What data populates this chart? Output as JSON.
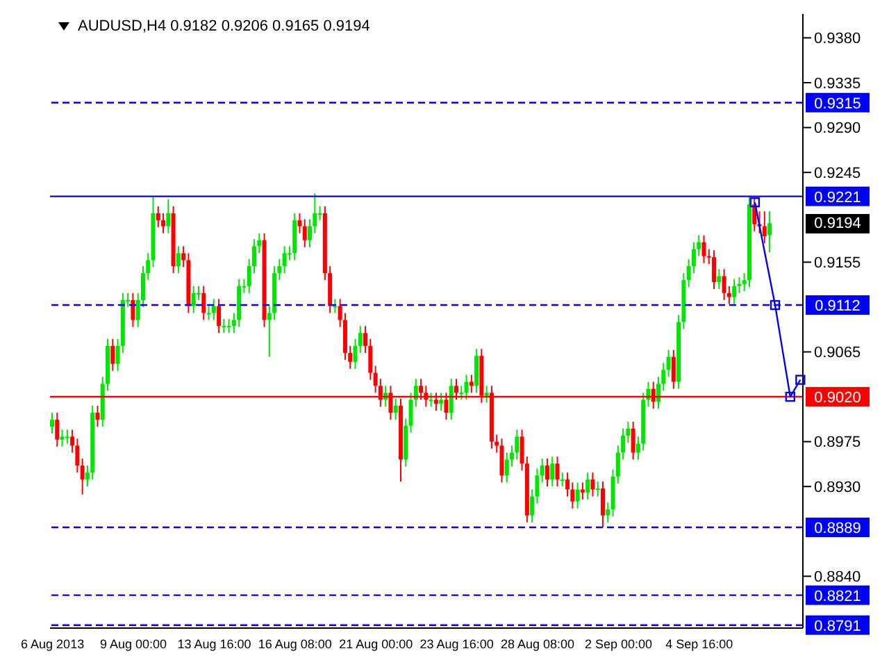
{
  "chart_data": {
    "type": "candlestick",
    "title": "AUDUSD,H4  0.9182 0.9206 0.9165 0.9194",
    "categories": [
      "6 Aug 2013",
      null,
      null,
      null,
      null,
      null,
      null,
      null,
      null,
      null,
      null,
      null,
      null,
      null,
      null,
      null,
      "9 Aug 00:00",
      null,
      null,
      null,
      null,
      null,
      null,
      null,
      null,
      null,
      null,
      null,
      null,
      null,
      null,
      null,
      "13 Aug 16:00",
      null,
      null,
      null,
      null,
      null,
      null,
      null,
      null,
      null,
      null,
      null,
      null,
      null,
      null,
      null,
      "16 Aug 08:00",
      null,
      null,
      null,
      null,
      null,
      null,
      null,
      null,
      null,
      null,
      null,
      null,
      null,
      null,
      null,
      "21 Aug 00:00",
      null,
      null,
      null,
      null,
      null,
      null,
      null,
      null,
      null,
      null,
      null,
      null,
      null,
      null,
      null,
      "23 Aug 16:00",
      null,
      null,
      null,
      null,
      null,
      null,
      null,
      null,
      null,
      null,
      null,
      null,
      null,
      null,
      null,
      "28 Aug 08:00",
      null,
      null,
      null,
      null,
      null,
      null,
      null,
      null,
      null,
      null,
      null,
      null,
      null,
      null,
      null,
      "2 Sep 00:00",
      null,
      null,
      null,
      null,
      null,
      null,
      null,
      null,
      null,
      null,
      null,
      null,
      null,
      null,
      null,
      "4 Sep 16:00",
      null,
      null,
      null,
      null,
      null,
      null,
      null,
      null,
      null,
      null,
      null,
      null,
      null,
      null,
      null,
      null,
      null,
      null,
      null,
      null
    ],
    "ylim": [
      0.8788,
      0.9404
    ],
    "yticks": [
      {
        "value": 0.938,
        "label": "0.9380"
      },
      {
        "value": 0.9335,
        "label": "0.9335"
      },
      {
        "value": 0.929,
        "label": "0.9290"
      },
      {
        "value": 0.9245,
        "label": "0.9245"
      },
      {
        "value": 0.9155,
        "label": "0.9155"
      },
      {
        "value": 0.9065,
        "label": "0.9065"
      },
      {
        "value": 0.8975,
        "label": "0.8975"
      },
      {
        "value": 0.893,
        "label": "0.8930"
      },
      {
        "value": 0.884,
        "label": "0.8840"
      }
    ],
    "marker": "square",
    "annotations": [
      "0.9194"
    ],
    "ref_lines": [
      {
        "axis": "y",
        "value": 0.9315,
        "label": "0.9315",
        "color": "#0000ff",
        "line_style": "dashed"
      },
      {
        "axis": "y",
        "value": 0.9221,
        "label": "0.9221",
        "color": "#0000ff",
        "line_style": "solid"
      },
      {
        "axis": "y",
        "value": 0.9112,
        "label": "0.9112",
        "color": "#0000ff",
        "line_style": "dashed"
      },
      {
        "axis": "y",
        "value": 0.902,
        "label": "0.9020",
        "color": "#ff0000",
        "line_style": "solid"
      },
      {
        "axis": "y",
        "value": 0.8889,
        "label": "0.8889",
        "color": "#0000ff",
        "line_style": "dashed"
      },
      {
        "axis": "y",
        "value": 0.8821,
        "label": "0.8821",
        "color": "#0000ff",
        "line_style": "dashed"
      },
      {
        "axis": "y",
        "value": 0.8791,
        "label": "0.8791",
        "color": "#0000ff",
        "line_style": "dashed"
      }
    ],
    "series": [
      {
        "colors": [
          "#00e600",
          "#ff0000",
          "#00e600",
          "#00e600",
          "#ff0000",
          "#ff0000",
          "#ff0000",
          "#00e600",
          "#00e600",
          "#ff0000",
          "#00e600",
          "#00e600",
          "#ff0000",
          "#00e600",
          "#00e600",
          "#00e600",
          "#ff0000",
          "#00e600",
          "#00e600",
          "#00e600",
          "#00e600",
          "#ff0000",
          "#ff0000",
          "#00e600",
          "#ff0000",
          "#00e600",
          "#ff0000",
          "#ff0000",
          "#00e600",
          "#00e600",
          "#ff0000",
          "#00e600",
          "#00e600",
          "#ff0000",
          "#00e600",
          "#00e600",
          "#00e600",
          "#00e600",
          "#00e600",
          "#00e600",
          "#00e600",
          "#00e600",
          "#ff0000",
          "#00e600",
          "#00e600",
          "#00e600",
          "#00e600",
          "#00e600",
          "#00e600",
          "#ff0000",
          "#ff0000",
          "#00e600",
          "#00e600",
          "#00e600",
          "#ff0000",
          "#ff0000",
          "#00e600",
          "#ff0000",
          "#ff0000",
          "#ff0000",
          "#00e600",
          "#00e600",
          "#ff0000",
          "#ff0000",
          "#ff0000",
          "#ff0000",
          "#00e600",
          "#ff0000",
          "#00e600",
          "#ff0000",
          "#00e600",
          "#00e600",
          "#00e600",
          "#ff0000",
          "#ff0000",
          "#00e600",
          "#ff0000",
          "#00e600",
          "#ff0000",
          "#00e600",
          "#ff0000",
          "#00e600",
          "#00e600",
          "#ff0000",
          "#00e600",
          "#ff0000",
          "#00e600",
          "#ff0000",
          "#ff0000",
          "#ff0000",
          "#00e600",
          "#00e600",
          "#00e600",
          "#ff0000",
          "#ff0000",
          "#00e600",
          "#00e600",
          "#00e600",
          "#ff0000",
          "#00e600",
          "#ff0000",
          "#00e600",
          "#ff0000",
          "#ff0000",
          "#00e600",
          "#ff0000",
          "#00e600",
          "#ff0000",
          "#00e600",
          "#ff0000",
          "#00e600",
          "#00e600",
          "#00e600",
          "#00e600",
          "#00e600",
          "#ff0000",
          "#00e600",
          "#00e600",
          "#00e600",
          "#ff0000",
          "#00e600",
          "#00e600",
          "#00e600",
          "#ff0000",
          "#00e600",
          "#00e600",
          "#00e600",
          "#00e600",
          "#00e600",
          "#ff0000",
          "#ff0000",
          "#ff0000",
          "#00e600",
          "#ff0000",
          "#ff0000",
          "#00e600",
          "#00e600",
          "#00e600",
          "#00e600",
          "#ff0000",
          "#ff0000",
          "#ff0000",
          "#00e600",
          null,
          null,
          null,
          null,
          null,
          null
        ],
        "ohlc": [
          [
            0.899,
            0.9004,
            0.8983,
            0.8997
          ],
          [
            0.8997,
            0.9004,
            0.897,
            0.8977
          ],
          [
            0.8977,
            0.8987,
            0.897,
            0.898
          ],
          [
            0.898,
            0.8987,
            0.8973,
            0.898
          ],
          [
            0.898,
            0.8987,
            0.8964,
            0.8971
          ],
          [
            0.8971,
            0.8978,
            0.8944,
            0.8951
          ],
          [
            0.8951,
            0.8958,
            0.8922,
            0.8937
          ],
          [
            0.8937,
            0.8951,
            0.893,
            0.8944
          ],
          [
            0.8944,
            0.9011,
            0.8937,
            0.9004
          ],
          [
            0.9004,
            0.9011,
            0.899,
            0.8997
          ],
          [
            0.8997,
            0.904,
            0.899,
            0.9033
          ],
          [
            0.9033,
            0.9078,
            0.9026,
            0.9071
          ],
          [
            0.9071,
            0.9078,
            0.9046,
            0.9053
          ],
          [
            0.9053,
            0.9078,
            0.9046,
            0.9071
          ],
          [
            0.9071,
            0.9124,
            0.9064,
            0.9117
          ],
          [
            0.9117,
            0.9124,
            0.911,
            0.9117
          ],
          [
            0.9117,
            0.9124,
            0.909,
            0.9097
          ],
          [
            0.9097,
            0.9124,
            0.909,
            0.9117
          ],
          [
            0.9117,
            0.9151,
            0.911,
            0.9144
          ],
          [
            0.9144,
            0.9164,
            0.9137,
            0.9157
          ],
          [
            0.9157,
            0.9221,
            0.915,
            0.9204
          ],
          [
            0.9204,
            0.9211,
            0.919,
            0.9197
          ],
          [
            0.9197,
            0.9204,
            0.9184,
            0.9191
          ],
          [
            0.9191,
            0.9218,
            0.9184,
            0.9204
          ],
          [
            0.9204,
            0.9211,
            0.9144,
            0.9151
          ],
          [
            0.9151,
            0.9171,
            0.9144,
            0.9164
          ],
          [
            0.9164,
            0.9171,
            0.915,
            0.9157
          ],
          [
            0.9157,
            0.9164,
            0.9104,
            0.9111
          ],
          [
            0.9111,
            0.9131,
            0.9104,
            0.9124
          ],
          [
            0.9124,
            0.9131,
            0.9117,
            0.9124
          ],
          [
            0.9124,
            0.9131,
            0.9097,
            0.9104
          ],
          [
            0.9104,
            0.9111,
            0.9097,
            0.9104
          ],
          [
            0.9104,
            0.9118,
            0.9097,
            0.9111
          ],
          [
            0.9111,
            0.9118,
            0.9084,
            0.9091
          ],
          [
            0.9091,
            0.9098,
            0.9084,
            0.9091
          ],
          [
            0.9091,
            0.9098,
            0.9084,
            0.9091
          ],
          [
            0.9091,
            0.9104,
            0.9084,
            0.9097
          ],
          [
            0.9097,
            0.9138,
            0.909,
            0.9131
          ],
          [
            0.9131,
            0.9138,
            0.9124,
            0.9131
          ],
          [
            0.9131,
            0.9158,
            0.9124,
            0.9151
          ],
          [
            0.9151,
            0.9178,
            0.9144,
            0.9171
          ],
          [
            0.9171,
            0.9184,
            0.9164,
            0.9177
          ],
          [
            0.9177,
            0.9184,
            0.909,
            0.9097
          ],
          [
            0.9097,
            0.9111,
            0.906,
            0.9104
          ],
          [
            0.9104,
            0.9151,
            0.9097,
            0.9144
          ],
          [
            0.9144,
            0.9158,
            0.9137,
            0.9151
          ],
          [
            0.9151,
            0.9171,
            0.9144,
            0.9164
          ],
          [
            0.9164,
            0.9171,
            0.9157,
            0.9164
          ],
          [
            0.9164,
            0.9204,
            0.9157,
            0.9197
          ],
          [
            0.9197,
            0.9204,
            0.9184,
            0.9191
          ],
          [
            0.9191,
            0.9198,
            0.917,
            0.9177
          ],
          [
            0.9177,
            0.9198,
            0.917,
            0.9191
          ],
          [
            0.9191,
            0.9224,
            0.9184,
            0.9204
          ],
          [
            0.9204,
            0.9211,
            0.9197,
            0.9204
          ],
          [
            0.9204,
            0.9211,
            0.9137,
            0.9144
          ],
          [
            0.9144,
            0.9151,
            0.9104,
            0.9111
          ],
          [
            0.9111,
            0.9118,
            0.9104,
            0.9111
          ],
          [
            0.9111,
            0.9118,
            0.909,
            0.9097
          ],
          [
            0.9097,
            0.9104,
            0.9057,
            0.9064
          ],
          [
            0.9064,
            0.9071,
            0.9048,
            0.9055
          ],
          [
            0.9055,
            0.9078,
            0.9048,
            0.9071
          ],
          [
            0.9071,
            0.9091,
            0.9064,
            0.9084
          ],
          [
            0.9084,
            0.9091,
            0.9064,
            0.9071
          ],
          [
            0.9071,
            0.9078,
            0.9037,
            0.9044
          ],
          [
            0.9044,
            0.9051,
            0.9024,
            0.9031
          ],
          [
            0.9031,
            0.9038,
            0.901,
            0.9017
          ],
          [
            0.9017,
            0.9031,
            0.901,
            0.9024
          ],
          [
            0.9024,
            0.9031,
            0.8997,
            0.9004
          ],
          [
            0.9004,
            0.9018,
            0.8997,
            0.9011
          ],
          [
            0.9011,
            0.9018,
            0.8935,
            0.8957
          ],
          [
            0.8957,
            0.8998,
            0.895,
            0.8991
          ],
          [
            0.8991,
            0.9024,
            0.8984,
            0.9017
          ],
          [
            0.9017,
            0.9038,
            0.901,
            0.9031
          ],
          [
            0.9031,
            0.9038,
            0.9017,
            0.9024
          ],
          [
            0.9024,
            0.9031,
            0.901,
            0.9017
          ],
          [
            0.9017,
            0.9024,
            0.901,
            0.9017
          ],
          [
            0.9017,
            0.9024,
            0.9006,
            0.9013
          ],
          [
            0.9013,
            0.9024,
            0.9006,
            0.9017
          ],
          [
            0.9017,
            0.9024,
            0.8997,
            0.9004
          ],
          [
            0.9004,
            0.9038,
            0.8997,
            0.9031
          ],
          [
            0.9031,
            0.9038,
            0.9017,
            0.9024
          ],
          [
            0.9024,
            0.9031,
            0.9017,
            0.9024
          ],
          [
            0.9024,
            0.9042,
            0.9017,
            0.9035
          ],
          [
            0.9035,
            0.9042,
            0.9024,
            0.9031
          ],
          [
            0.9031,
            0.9068,
            0.9024,
            0.9061
          ],
          [
            0.9061,
            0.9068,
            0.9014,
            0.9021
          ],
          [
            0.9021,
            0.9031,
            0.9014,
            0.9024
          ],
          [
            0.9024,
            0.9031,
            0.8968,
            0.8975
          ],
          [
            0.8975,
            0.8982,
            0.8964,
            0.8971
          ],
          [
            0.8971,
            0.8978,
            0.8934,
            0.8941
          ],
          [
            0.8941,
            0.8964,
            0.8934,
            0.8957
          ],
          [
            0.8957,
            0.8971,
            0.895,
            0.8964
          ],
          [
            0.8964,
            0.8987,
            0.8957,
            0.898
          ],
          [
            0.898,
            0.8987,
            0.8946,
            0.8953
          ],
          [
            0.8953,
            0.896,
            0.8894,
            0.8901
          ],
          [
            0.8901,
            0.8927,
            0.8894,
            0.892
          ],
          [
            0.892,
            0.8948,
            0.8913,
            0.8941
          ],
          [
            0.8941,
            0.8958,
            0.8934,
            0.8951
          ],
          [
            0.8951,
            0.8958,
            0.893,
            0.8937
          ],
          [
            0.8937,
            0.896,
            0.893,
            0.8953
          ],
          [
            0.8953,
            0.896,
            0.893,
            0.8937
          ],
          [
            0.8937,
            0.8944,
            0.893,
            0.8937
          ],
          [
            0.8937,
            0.8944,
            0.892,
            0.8927
          ],
          [
            0.8927,
            0.8934,
            0.8908,
            0.8915
          ],
          [
            0.8915,
            0.8934,
            0.8908,
            0.8927
          ],
          [
            0.8927,
            0.8934,
            0.8917,
            0.8924
          ],
          [
            0.8924,
            0.8944,
            0.8917,
            0.8937
          ],
          [
            0.8937,
            0.8944,
            0.892,
            0.8927
          ],
          [
            0.8927,
            0.8935,
            0.892,
            0.8928
          ],
          [
            0.8928,
            0.8935,
            0.8889,
            0.8901
          ],
          [
            0.8901,
            0.8914,
            0.8894,
            0.8907
          ],
          [
            0.8907,
            0.8947,
            0.89,
            0.894
          ],
          [
            0.894,
            0.8971,
            0.8933,
            0.8964
          ],
          [
            0.8964,
            0.8988,
            0.8957,
            0.8981
          ],
          [
            0.8981,
            0.8995,
            0.8974,
            0.8988
          ],
          [
            0.8988,
            0.8995,
            0.8957,
            0.8964
          ],
          [
            0.8964,
            0.898,
            0.8957,
            0.8973
          ],
          [
            0.8973,
            0.9024,
            0.8966,
            0.9017
          ],
          [
            0.9017,
            0.9035,
            0.901,
            0.9028
          ],
          [
            0.9028,
            0.9035,
            0.9008,
            0.9015
          ],
          [
            0.9015,
            0.904,
            0.9008,
            0.9033
          ],
          [
            0.9033,
            0.9054,
            0.9026,
            0.9047
          ],
          [
            0.9047,
            0.9067,
            0.904,
            0.906
          ],
          [
            0.906,
            0.9067,
            0.9028,
            0.9035
          ],
          [
            0.9035,
            0.9102,
            0.9028,
            0.9095
          ],
          [
            0.9095,
            0.9144,
            0.9088,
            0.9137
          ],
          [
            0.9137,
            0.9158,
            0.913,
            0.9151
          ],
          [
            0.9151,
            0.9175,
            0.9144,
            0.9168
          ],
          [
            0.9168,
            0.9182,
            0.9161,
            0.9175
          ],
          [
            0.9175,
            0.9182,
            0.9154,
            0.9161
          ],
          [
            0.9161,
            0.9168,
            0.9153,
            0.916
          ],
          [
            0.916,
            0.9167,
            0.9128,
            0.9135
          ],
          [
            0.9135,
            0.9148,
            0.9128,
            0.9141
          ],
          [
            0.9141,
            0.9148,
            0.9117,
            0.9124
          ],
          [
            0.9124,
            0.9131,
            0.9113,
            0.912
          ],
          [
            0.912,
            0.9138,
            0.9113,
            0.9131
          ],
          [
            0.9131,
            0.914,
            0.9124,
            0.9133
          ],
          [
            0.9133,
            0.9144,
            0.9126,
            0.9137
          ],
          [
            0.9137,
            0.9221,
            0.913,
            0.9213
          ],
          [
            0.9213,
            0.922,
            0.9186,
            0.9193
          ],
          [
            0.9193,
            0.9206,
            0.9184,
            0.9191
          ],
          [
            0.9191,
            0.9206,
            0.9174,
            0.9181
          ],
          [
            0.9182,
            0.9206,
            0.9165,
            0.9194
          ],
          null,
          null,
          null,
          null,
          null,
          null
        ]
      },
      {
        "type": "line",
        "color": "#0000ff",
        "values": [
          null,
          null,
          null,
          null,
          null,
          null,
          null,
          null,
          null,
          null,
          null,
          null,
          null,
          null,
          null,
          null,
          null,
          null,
          null,
          null,
          null,
          null,
          null,
          null,
          null,
          null,
          null,
          null,
          null,
          null,
          null,
          null,
          null,
          null,
          null,
          null,
          null,
          null,
          null,
          null,
          null,
          null,
          null,
          null,
          null,
          null,
          null,
          null,
          null,
          null,
          null,
          null,
          null,
          null,
          null,
          null,
          null,
          null,
          null,
          null,
          null,
          null,
          null,
          null,
          null,
          null,
          null,
          null,
          null,
          null,
          null,
          null,
          null,
          null,
          null,
          null,
          null,
          null,
          null,
          null,
          null,
          null,
          null,
          null,
          null,
          null,
          null,
          null,
          null,
          null,
          null,
          null,
          null,
          null,
          null,
          null,
          null,
          null,
          null,
          null,
          null,
          null,
          null,
          null,
          null,
          null,
          null,
          null,
          null,
          null,
          null,
          null,
          null,
          null,
          null,
          null,
          null,
          null,
          null,
          null,
          null,
          null,
          null,
          null,
          null,
          null,
          null,
          null,
          null,
          null,
          null,
          null,
          null,
          null,
          null,
          null,
          null,
          null,
          null,
          0.9215,
          null,
          null,
          null,
          0.9112,
          null,
          null,
          0.902,
          null,
          0.9037
        ]
      }
    ]
  }
}
